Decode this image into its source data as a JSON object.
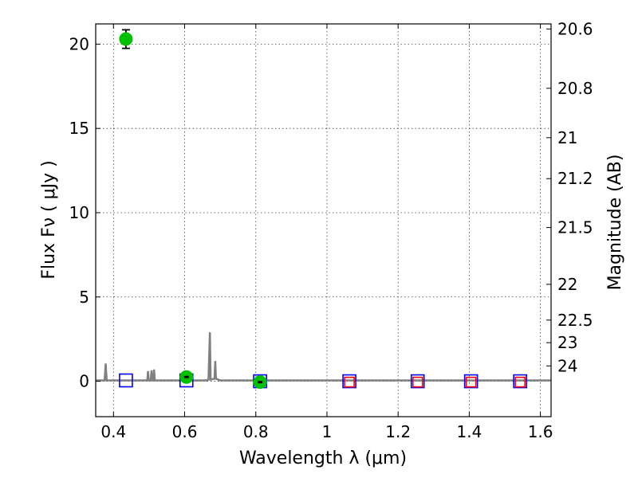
{
  "chart_data": {
    "type": "scatter",
    "xlabel": "Wavelength  λ (μm)",
    "ylabel": "Flux  Fν  ( μJy )",
    "ylabel_right": "Magnitude (AB)",
    "xlim": [
      0.35,
      1.63
    ],
    "ylim": [
      -2.1,
      21.2
    ],
    "grid": true,
    "x_ticks": [
      {
        "value": 0.4,
        "label": "0.4"
      },
      {
        "value": 0.6,
        "label": "0.6"
      },
      {
        "value": 0.8,
        "label": "0.8"
      },
      {
        "value": 1.0,
        "label": "1"
      },
      {
        "value": 1.2,
        "label": "1.2"
      },
      {
        "value": 1.4,
        "label": "1.4"
      },
      {
        "value": 1.6,
        "label": "1.6"
      }
    ],
    "y_ticks": [
      {
        "value": 0,
        "label": "0"
      },
      {
        "value": 5,
        "label": "5"
      },
      {
        "value": 10,
        "label": "10"
      },
      {
        "value": 15,
        "label": "15"
      },
      {
        "value": 20,
        "label": "20"
      }
    ],
    "mag_ticks": [
      {
        "flux": 20.9,
        "label": "20.6"
      },
      {
        "flux": 17.38,
        "label": "20.8"
      },
      {
        "flux": 14.45,
        "label": "21"
      },
      {
        "flux": 12.02,
        "label": "21.2"
      },
      {
        "flux": 9.12,
        "label": "21.5"
      },
      {
        "flux": 5.75,
        "label": "22"
      },
      {
        "flux": 3.63,
        "label": "22.5"
      },
      {
        "flux": 2.29,
        "label": "23"
      },
      {
        "flux": 0.91,
        "label": "24"
      }
    ],
    "series": [
      {
        "marker": "circle",
        "color": "#00c000",
        "points": [
          {
            "x": 0.435,
            "y": 20.3,
            "yerr": 0.55
          },
          {
            "x": 0.605,
            "y": 0.25,
            "yerr": 0.15
          },
          {
            "x": 0.812,
            "y": -0.05,
            "yerr": 0.15
          }
        ]
      },
      {
        "marker": "square",
        "color": "#0000ff",
        "points": [
          {
            "x": 0.435,
            "y": 0.05
          },
          {
            "x": 0.605,
            "y": 0.05
          },
          {
            "x": 0.812,
            "y": 0.0
          },
          {
            "x": 1.063,
            "y": 0.0
          },
          {
            "x": 1.255,
            "y": 0.0
          },
          {
            "x": 1.405,
            "y": 0.0
          },
          {
            "x": 1.543,
            "y": 0.0
          }
        ]
      },
      {
        "marker": "square",
        "color": "#ff0000",
        "points": [
          {
            "x": 1.063,
            "y": -0.05
          },
          {
            "x": 1.255,
            "y": -0.05
          },
          {
            "x": 1.405,
            "y": -0.05
          },
          {
            "x": 1.543,
            "y": -0.05
          }
        ]
      },
      {
        "marker": "line",
        "color": "#808080",
        "points": [
          [
            0.35,
            0.05
          ],
          [
            0.375,
            0.05
          ],
          [
            0.378,
            1.05
          ],
          [
            0.381,
            0.05
          ],
          [
            0.495,
            0.05
          ],
          [
            0.497,
            0.6
          ],
          [
            0.499,
            0.05
          ],
          [
            0.505,
            0.05
          ],
          [
            0.507,
            0.65
          ],
          [
            0.509,
            0.05
          ],
          [
            0.512,
            0.05
          ],
          [
            0.514,
            0.7
          ],
          [
            0.516,
            0.05
          ],
          [
            0.66,
            0.05
          ],
          [
            0.667,
            0.1
          ],
          [
            0.671,
            2.9
          ],
          [
            0.673,
            0.1
          ],
          [
            0.684,
            0.15
          ],
          [
            0.686,
            1.2
          ],
          [
            0.688,
            0.15
          ],
          [
            0.7,
            0.05
          ],
          [
            1.63,
            0.05
          ]
        ]
      }
    ]
  }
}
